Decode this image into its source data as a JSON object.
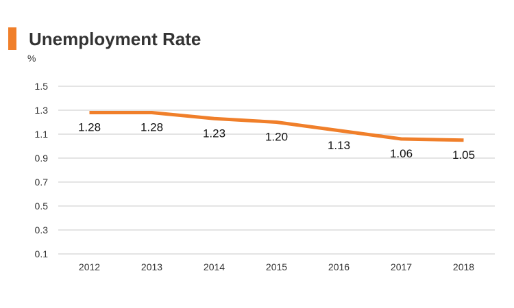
{
  "title": "Unemployment Rate",
  "colors": {
    "accent": "#f07f2a",
    "line": "#f07f2a",
    "grid": "#c8c8c8",
    "text": "#333333"
  },
  "chart_data": {
    "type": "line",
    "title": "Unemployment Rate",
    "ylabel": "%",
    "xlabel": "",
    "categories": [
      "2012",
      "2013",
      "2014",
      "2015",
      "2016",
      "2017",
      "2018"
    ],
    "series": [
      {
        "values": [
          1.28,
          1.28,
          1.23,
          1.2,
          1.13,
          1.06,
          1.05
        ],
        "labels": [
          "1.28",
          "1.28",
          "1.23",
          "1.20",
          "1.13",
          "1.06",
          "1.05"
        ]
      }
    ],
    "yticks": [
      "0.1",
      "0.3",
      "0.5",
      "0.7",
      "0.9",
      "1.1",
      "1.3",
      "1.5"
    ],
    "ylim": [
      0.1,
      1.5
    ],
    "grid": true,
    "legend": "none"
  }
}
